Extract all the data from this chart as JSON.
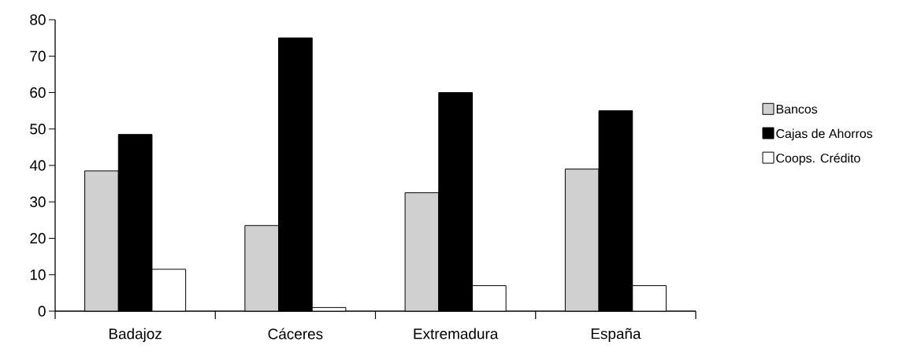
{
  "chart_data": {
    "type": "bar",
    "categories": [
      "Badajoz",
      "Cáceres",
      "Extremadura",
      "España"
    ],
    "series": [
      {
        "name": "Bancos",
        "color": "#d0d0d0",
        "values": [
          38.5,
          23.5,
          32.5,
          39
        ]
      },
      {
        "name": "Cajas de Ahorros",
        "color": "#000000",
        "values": [
          48.5,
          75,
          60,
          55
        ]
      },
      {
        "name": "Coops. Crédito",
        "color": "#ffffff",
        "values": [
          11.5,
          1,
          7,
          7
        ]
      }
    ],
    "ylim": [
      0,
      80
    ],
    "yticks": [
      0,
      10,
      20,
      30,
      40,
      50,
      60,
      70,
      80
    ],
    "grid": false,
    "legend": "right"
  }
}
